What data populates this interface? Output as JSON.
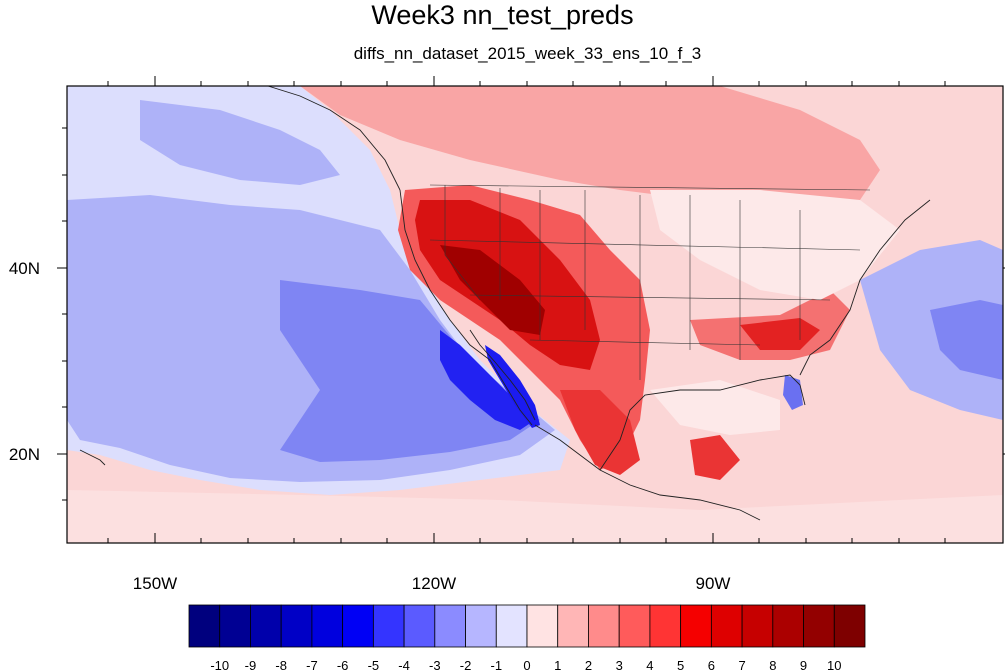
{
  "title": "Week3 nn_test_preds",
  "subtitle": "diffs_nn_dataset_2015_week_33_ens_10_f_3",
  "x_tick_labels": [
    "150W",
    "120W",
    "90W"
  ],
  "y_tick_labels": [
    "40N",
    "20N"
  ],
  "colorbar": {
    "labels": [
      "-10",
      "-9",
      "-8",
      "-7",
      "-6",
      "-5",
      "-4",
      "-3",
      "-2",
      "-1",
      "0",
      "1",
      "2",
      "3",
      "4",
      "5",
      "6",
      "7",
      "8",
      "9",
      "10"
    ],
    "colors": [
      "#00007e",
      "#000093",
      "#0000ab",
      "#0000c6",
      "#0000de",
      "#0000f5",
      "#3434ff",
      "#5b5bff",
      "#8b8bff",
      "#b6b6ff",
      "#e3e3ff",
      "#ffe3e3",
      "#ffb6b6",
      "#ff8b8b",
      "#ff5b5b",
      "#ff3434",
      "#f50000",
      "#de0000",
      "#c60000",
      "#ab0000",
      "#930000",
      "#7e0000"
    ]
  },
  "map": {
    "lon_range": [
      -161,
      -76
    ],
    "lat_range": [
      10,
      58
    ],
    "field_colors": {
      "ocean_light_blue": "#c9cdfb",
      "ocean_mid_blue": "#9fa4f6",
      "deep_blue": "#1313f0",
      "light_red": "#fbc4c4",
      "mid_red": "#f27575",
      "strong_red": "#e62020",
      "dark_red": "#a80000",
      "near_zero": "#fde9e9"
    }
  }
}
